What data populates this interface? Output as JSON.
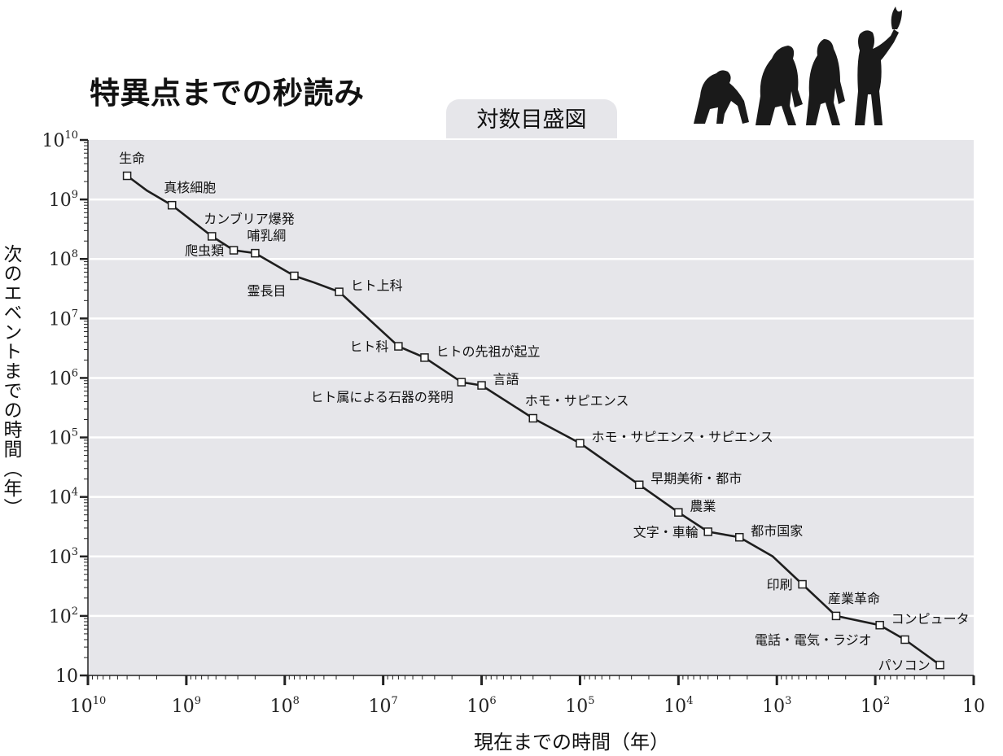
{
  "title": "特異点までの秒読み",
  "subtitle": "対数目盛図",
  "colors": {
    "plot_bg": "#e6e6ea",
    "grid": "#ffffff",
    "line": "#1e1e1e",
    "marker_fill": "#ffffff"
  },
  "chart_data": {
    "type": "line",
    "xlabel": "現在までの時間（年）",
    "ylabel": "次のエベントまでの時間（年）",
    "x_scale": "log",
    "x_reversed": true,
    "y_scale": "log",
    "xlim": [
      10000000000,
      10
    ],
    "ylim": [
      10,
      10000000000
    ],
    "grid": "horizontal",
    "x_ticks": [
      {
        "base": "10",
        "exp": "10"
      },
      {
        "base": "10",
        "exp": "9"
      },
      {
        "base": "10",
        "exp": "8"
      },
      {
        "base": "10",
        "exp": "7"
      },
      {
        "base": "10",
        "exp": "6"
      },
      {
        "base": "10",
        "exp": "5"
      },
      {
        "base": "10",
        "exp": "4"
      },
      {
        "base": "10",
        "exp": "3"
      },
      {
        "base": "10",
        "exp": "2"
      },
      {
        "base": "10",
        "exp": ""
      }
    ],
    "y_ticks": [
      {
        "base": "10",
        "exp": "10"
      },
      {
        "base": "10",
        "exp": "9"
      },
      {
        "base": "10",
        "exp": "8"
      },
      {
        "base": "10",
        "exp": "7"
      },
      {
        "base": "10",
        "exp": "6"
      },
      {
        "base": "10",
        "exp": "5"
      },
      {
        "base": "10",
        "exp": "4"
      },
      {
        "base": "10",
        "exp": "3"
      },
      {
        "base": "10",
        "exp": "2"
      },
      {
        "base": "10",
        "exp": ""
      }
    ],
    "points": [
      {
        "label": "生命",
        "x": 4000000000,
        "y": 2500000000,
        "anchor": "start",
        "side": "above"
      },
      {
        "label": "真核細胞",
        "x": 1400000000,
        "y": 800000000,
        "anchor": "start",
        "side": "above"
      },
      {
        "label": "カンブリア爆発",
        "x": 550000000,
        "y": 240000000,
        "anchor": "start",
        "side": "above"
      },
      {
        "label": "爬虫類",
        "x": 330000000,
        "y": 140000000,
        "anchor": "end",
        "side": "left"
      },
      {
        "label": "哺乳綱",
        "x": 200000000,
        "y": 125000000,
        "anchor": "start",
        "side": "above"
      },
      {
        "label": "霊長目",
        "x": 80000000,
        "y": 52000000,
        "anchor": "end",
        "side": "below"
      },
      {
        "label": "ヒト上科",
        "x": 28000000,
        "y": 28000000,
        "anchor": "start",
        "side": "right"
      },
      {
        "label": "ヒト科",
        "x": 7000000,
        "y": 3400000,
        "anchor": "end",
        "side": "left"
      },
      {
        "label": "ヒトの先祖が起立",
        "x": 3800000,
        "y": 2200000,
        "anchor": "start",
        "side": "right"
      },
      {
        "label": "ヒト属による石器の発明",
        "x": 1600000,
        "y": 850000,
        "anchor": "end",
        "side": "below"
      },
      {
        "label": "言語",
        "x": 1000000,
        "y": 750000,
        "anchor": "start",
        "side": "right"
      },
      {
        "label": "ホモ・サピエンス",
        "x": 300000,
        "y": 210000,
        "anchor": "start",
        "side": "above"
      },
      {
        "label": "ホモ・サピエンス・サピエンス",
        "x": 100000,
        "y": 80000,
        "anchor": "start",
        "side": "right"
      },
      {
        "label": "早期美術・都市",
        "x": 25000,
        "y": 16000,
        "anchor": "start",
        "side": "right"
      },
      {
        "label": "農業",
        "x": 10000,
        "y": 5500,
        "anchor": "start",
        "side": "right"
      },
      {
        "label": "文字・車輪",
        "x": 5000,
        "y": 2600,
        "anchor": "end",
        "side": "left"
      },
      {
        "label": "都市国家",
        "x": 2400,
        "y": 2100,
        "anchor": "start",
        "side": "right"
      },
      {
        "label": "印刷",
        "x": 550,
        "y": 340,
        "anchor": "end",
        "side": "left"
      },
      {
        "label": "産業革命",
        "x": 250,
        "y": 100,
        "anchor": "start",
        "side": "above"
      },
      {
        "label": "コンピュータ",
        "x": 90,
        "y": 70,
        "anchor": "start",
        "side": "right"
      },
      {
        "label": "電話・電気・ラジオ",
        "x": 90,
        "y": 70,
        "anchor": "end",
        "side": "below"
      },
      {
        "label": "パソコン",
        "x": 22,
        "y": 15,
        "anchor": "end",
        "side": "left"
      }
    ],
    "line_path_points": [
      [
        4000000000,
        2500000000
      ],
      [
        2500000000,
        1400000000
      ],
      [
        1400000000,
        800000000
      ],
      [
        550000000,
        240000000
      ],
      [
        330000000,
        140000000
      ],
      [
        200000000,
        125000000
      ],
      [
        80000000,
        52000000
      ],
      [
        50000000,
        40000000
      ],
      [
        28000000,
        28000000
      ],
      [
        7000000,
        3400000
      ],
      [
        3800000,
        2200000
      ],
      [
        1600000,
        850000
      ],
      [
        1000000,
        750000
      ],
      [
        300000,
        210000
      ],
      [
        100000,
        80000
      ],
      [
        25000,
        16000
      ],
      [
        10000,
        5500
      ],
      [
        5000,
        2600
      ],
      [
        2400,
        2100
      ],
      [
        1100,
        1000
      ],
      [
        550,
        340
      ],
      [
        250,
        100
      ],
      [
        90,
        70
      ],
      [
        50,
        40
      ],
      [
        22,
        15
      ]
    ],
    "markers": [
      [
        4000000000,
        2500000000
      ],
      [
        1400000000,
        800000000
      ],
      [
        550000000,
        240000000
      ],
      [
        330000000,
        140000000
      ],
      [
        200000000,
        125000000
      ],
      [
        80000000,
        52000000
      ],
      [
        28000000,
        28000000
      ],
      [
        7000000,
        3400000
      ],
      [
        3800000,
        2200000
      ],
      [
        1600000,
        850000
      ],
      [
        1000000,
        750000
      ],
      [
        300000,
        210000
      ],
      [
        100000,
        80000
      ],
      [
        25000,
        16000
      ],
      [
        10000,
        5500
      ],
      [
        5000,
        2600
      ],
      [
        2400,
        2100
      ],
      [
        550,
        340
      ],
      [
        250,
        100
      ],
      [
        90,
        70
      ],
      [
        50,
        40
      ],
      [
        22,
        15
      ]
    ]
  }
}
